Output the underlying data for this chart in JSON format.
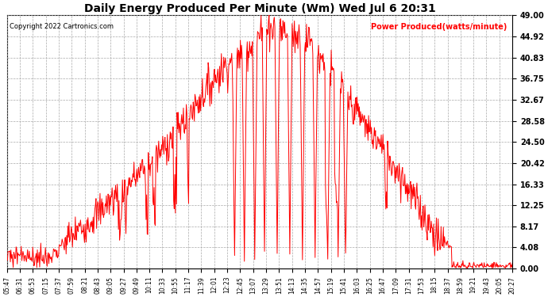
{
  "title": "Daily Energy Produced Per Minute (Wm) Wed Jul 6 20:31",
  "copyright": "Copyright 2022 Cartronics.com",
  "legend_label": "Power Produced(watts/minute)",
  "ylabel_right_values": [
    0.0,
    4.08,
    8.17,
    12.25,
    16.33,
    20.42,
    24.5,
    28.58,
    32.67,
    36.75,
    40.83,
    44.92,
    49.0
  ],
  "ymax": 49.0,
  "ymin": 0.0,
  "line_color": "red",
  "grid_color": "#aaaaaa",
  "background_color": "#ffffff",
  "title_color": "#000000",
  "legend_color": "red",
  "copyright_color": "#000000",
  "xtick_labels": [
    "05:47",
    "06:31",
    "06:53",
    "07:15",
    "07:37",
    "07:59",
    "08:21",
    "08:43",
    "09:05",
    "09:27",
    "09:49",
    "10:11",
    "10:33",
    "10:55",
    "11:17",
    "11:39",
    "12:01",
    "12:23",
    "12:45",
    "13:07",
    "13:29",
    "13:51",
    "14:13",
    "14:35",
    "14:57",
    "15:19",
    "15:41",
    "16:03",
    "16:25",
    "16:47",
    "17:09",
    "17:31",
    "17:53",
    "18:15",
    "18:37",
    "18:59",
    "19:21",
    "19:43",
    "20:05",
    "20:27"
  ]
}
